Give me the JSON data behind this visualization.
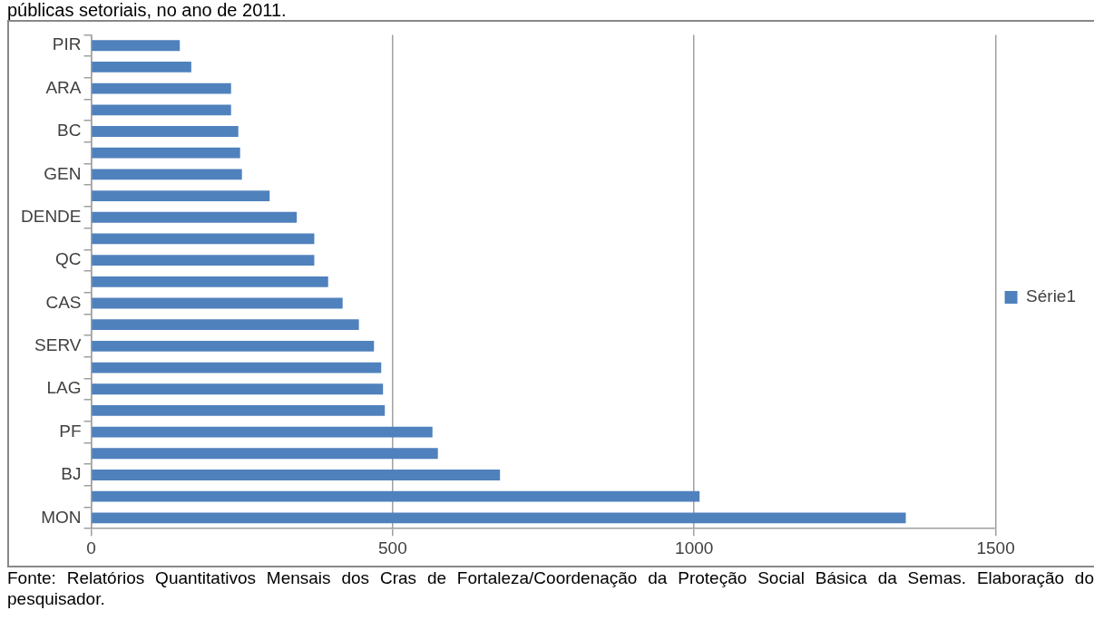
{
  "chart_data": {
    "type": "bar",
    "orientation": "horizontal",
    "title": "públicas setoriais, no ano de 2011.",
    "categories": [
      "PIR",
      null,
      "ARA",
      null,
      "BC",
      null,
      "GEN",
      null,
      "DENDE",
      null,
      "QC",
      null,
      "CAS",
      null,
      "SERV",
      null,
      "LAG",
      null,
      "PF",
      null,
      "BJ",
      null,
      "MON"
    ],
    "series": [
      {
        "name": "Série1",
        "color": "#4f81bd",
        "values": [
          147,
          166,
          232,
          232,
          244,
          247,
          250,
          296,
          341,
          370,
          370,
          393,
          417,
          444,
          469,
          481,
          484,
          487,
          566,
          575,
          678,
          1009,
          1351
        ]
      }
    ],
    "xlim": [
      0,
      1500
    ],
    "xticks": [
      0,
      500,
      1000,
      1500
    ],
    "grid": "x",
    "legend": "right",
    "annotations": [
      "Fonte: Relatórios Quantitativos Mensais dos Cras de Fortaleza/Coordenação da Proteção Social Básica da Semas. Elaboração do pesquisador."
    ]
  }
}
